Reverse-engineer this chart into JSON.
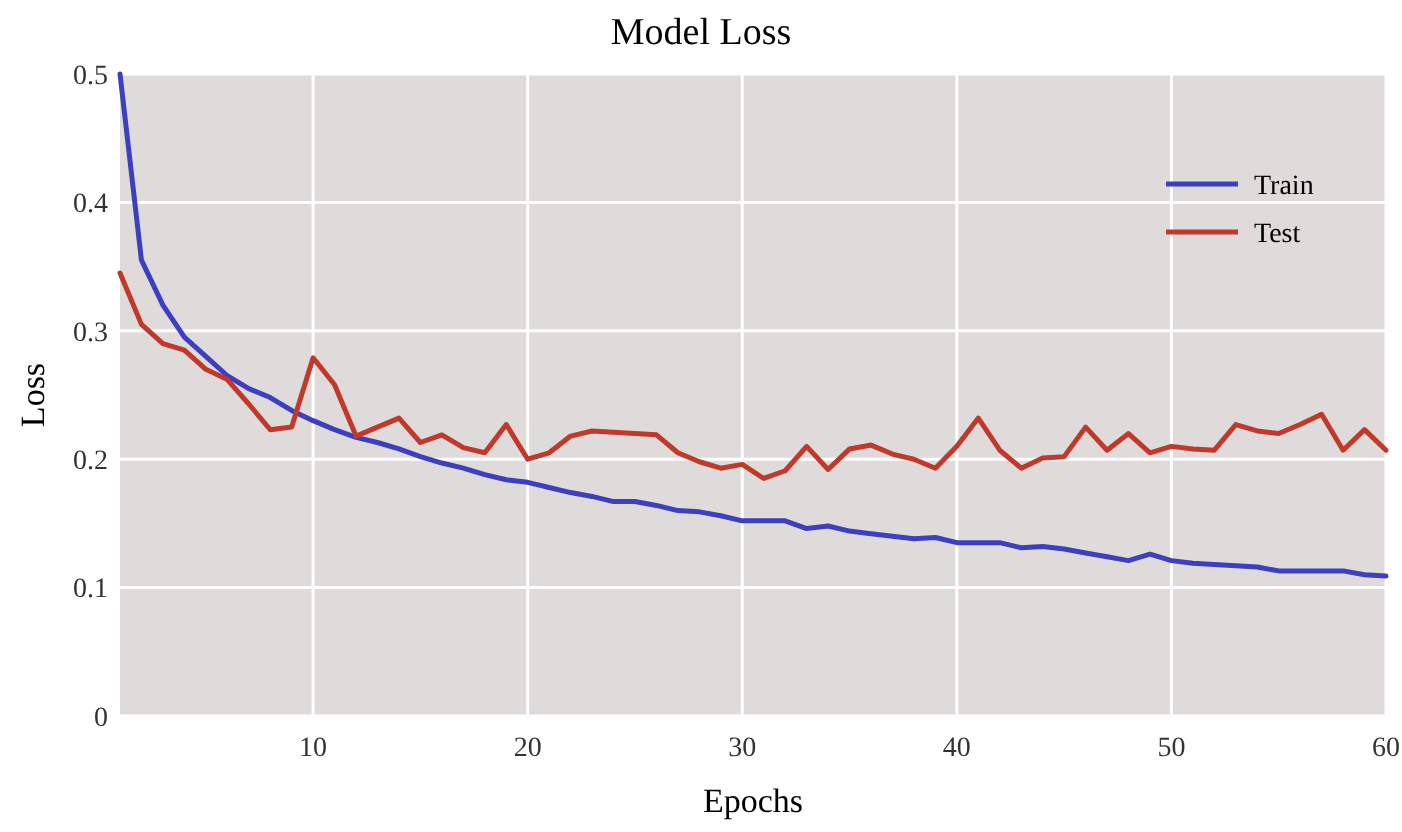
{
  "chart_data": {
    "type": "line",
    "title": "Model Loss",
    "xlabel": "Epochs",
    "ylabel": "Loss",
    "x": [
      1,
      2,
      3,
      4,
      5,
      6,
      7,
      8,
      9,
      10,
      11,
      12,
      13,
      14,
      15,
      16,
      17,
      18,
      19,
      20,
      21,
      22,
      23,
      24,
      25,
      26,
      27,
      28,
      29,
      30,
      31,
      32,
      33,
      34,
      35,
      36,
      37,
      38,
      39,
      40,
      41,
      42,
      43,
      44,
      45,
      46,
      47,
      48,
      49,
      50,
      51,
      52,
      53,
      54,
      55,
      56,
      57,
      58,
      59,
      60
    ],
    "series": [
      {
        "name": "Train",
        "color": "#3b3fc0",
        "values": [
          0.5,
          0.355,
          0.32,
          0.295,
          0.28,
          0.265,
          0.255,
          0.248,
          0.238,
          0.23,
          0.223,
          0.217,
          0.213,
          0.208,
          0.202,
          0.197,
          0.193,
          0.188,
          0.184,
          0.182,
          0.178,
          0.174,
          0.171,
          0.167,
          0.167,
          0.164,
          0.16,
          0.159,
          0.156,
          0.152,
          0.152,
          0.152,
          0.146,
          0.148,
          0.144,
          0.142,
          0.14,
          0.138,
          0.139,
          0.135,
          0.135,
          0.135,
          0.131,
          0.132,
          0.13,
          0.127,
          0.124,
          0.121,
          0.126,
          0.121,
          0.119,
          0.118,
          0.117,
          0.116,
          0.113,
          0.113,
          0.113,
          0.113,
          0.11,
          0.109
        ]
      },
      {
        "name": "Test",
        "color": "#c0392b",
        "values": [
          0.345,
          0.305,
          0.29,
          0.285,
          0.27,
          0.262,
          0.243,
          0.223,
          0.225,
          0.279,
          0.258,
          0.218,
          0.225,
          0.232,
          0.213,
          0.219,
          0.209,
          0.205,
          0.227,
          0.2,
          0.205,
          0.218,
          0.222,
          0.221,
          0.22,
          0.219,
          0.205,
          0.198,
          0.193,
          0.196,
          0.185,
          0.191,
          0.21,
          0.192,
          0.208,
          0.211,
          0.204,
          0.2,
          0.193,
          0.21,
          0.232,
          0.207,
          0.193,
          0.201,
          0.202,
          0.225,
          0.207,
          0.22,
          0.205,
          0.21,
          0.208,
          0.207,
          0.227,
          0.222,
          0.22,
          0.227,
          0.235,
          0.207,
          0.223,
          0.207
        ]
      }
    ],
    "xlim": [
      1,
      60
    ],
    "xticks": [
      10,
      20,
      30,
      40,
      50,
      60
    ],
    "ylim": [
      0,
      0.5
    ],
    "yticks": [
      0,
      0.1,
      0.2,
      0.3,
      0.4,
      0.5
    ],
    "grid": true,
    "legend": "top right",
    "line_style": "solid",
    "marker": "none"
  }
}
